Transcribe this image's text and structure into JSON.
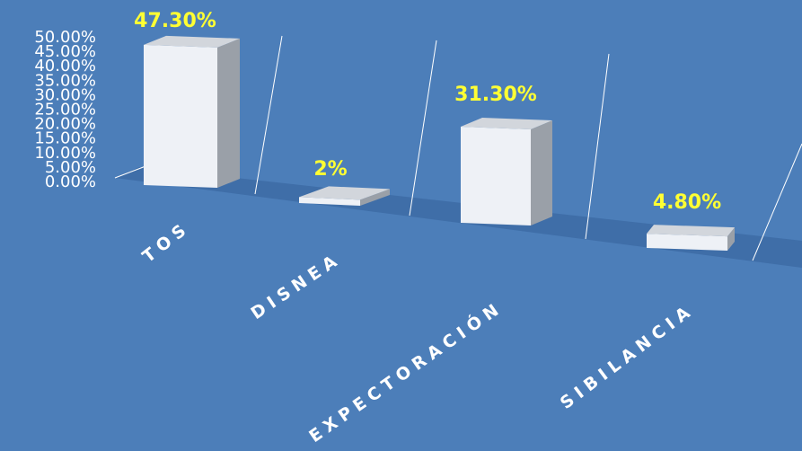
{
  "chart_data": {
    "type": "bar",
    "categories": [
      "TOS",
      "DISNEA",
      "EXPECTORACIÓN",
      "SIBILANCIA"
    ],
    "values": [
      47.3,
      2,
      31.3,
      4.8
    ],
    "data_labels": [
      "47.30%",
      "2%",
      "31.30%",
      "4.80%"
    ],
    "y_ticks": [
      "0.00%",
      "5.00%",
      "10.00%",
      "15.00%",
      "20.00%",
      "25.00%",
      "30.00%",
      "35.00%",
      "40.00%",
      "45.00%",
      "50.00%"
    ],
    "ylim": [
      0,
      50
    ],
    "title": "",
    "xlabel": "",
    "ylabel": "",
    "grid": false,
    "style": "3d-perspective",
    "colors": {
      "background": "#4c7eb9",
      "bar_front": "#eef1f6",
      "bar_side": "#9aa0a8",
      "bar_top": "#d2d6dc",
      "floor": "#3f6ea8",
      "data_label": "#ffff33",
      "axis_text": "#ffffff"
    }
  }
}
